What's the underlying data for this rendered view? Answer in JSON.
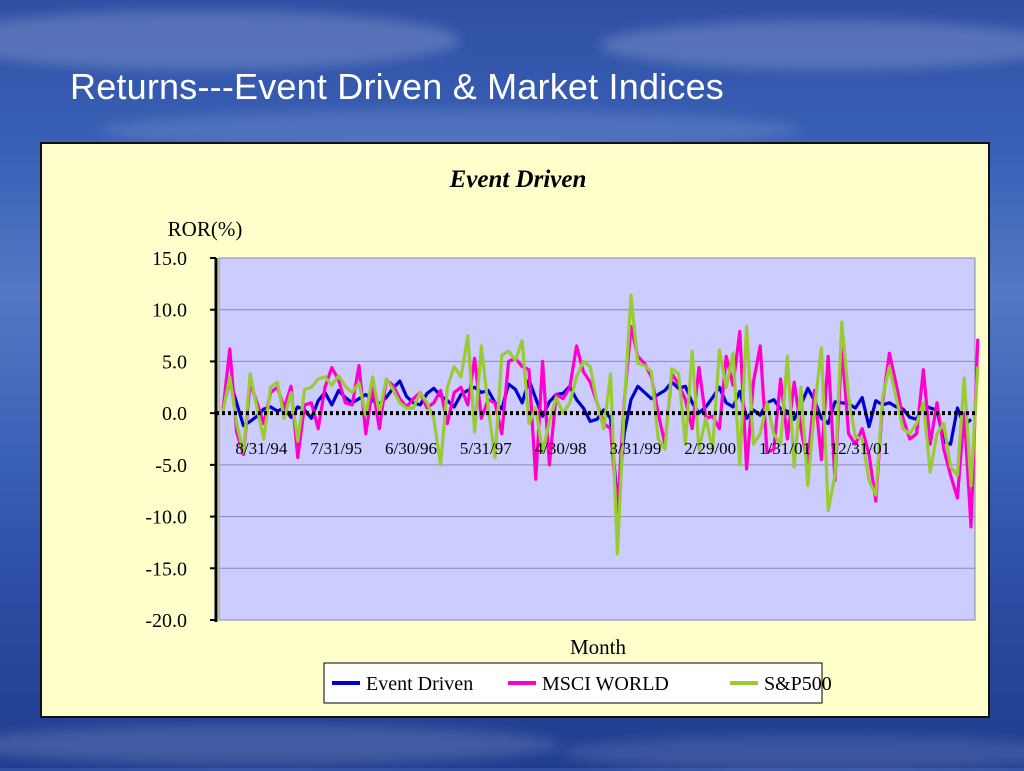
{
  "slide": {
    "title": "Returns---Event Driven & Market Indices"
  },
  "chart_data": {
    "type": "line",
    "title": "Event Driven",
    "ylabel": "ROR(%)",
    "xlabel": "Month",
    "ylim": [
      -20,
      15
    ],
    "y_ticks": [
      "15.0",
      "10.0",
      "5.0",
      "0.0",
      "-5.0",
      "-10.0",
      "-15.0",
      "-20.0"
    ],
    "y_tick_values": [
      15,
      10,
      5,
      0,
      -5,
      -10,
      -15,
      -20
    ],
    "x_tick_labels": [
      "8/31/94",
      "7/31/95",
      "6/30/96",
      "5/31/97",
      "4/30/98",
      "3/31/99",
      "2/29/00",
      "1/31/01",
      "12/31/01"
    ],
    "x_tick_index": [
      3,
      14,
      25,
      36,
      47,
      58,
      69,
      80,
      91
    ],
    "grid": true,
    "legend_position": "bottom",
    "colors": {
      "plot_bg": "#ccccff",
      "panel_bg": "#ffffcc",
      "zero_line": "#000000"
    },
    "series": [
      {
        "name": "Event Driven",
        "color": "#0000cc",
        "values": [
          0.5,
          3.2,
          1.0,
          -1.2,
          -0.8,
          -0.3,
          0.4,
          0.6,
          0.2,
          0.5,
          -0.4,
          0.6,
          0.3,
          -0.5,
          1.2,
          2.0,
          0.8,
          2.2,
          1.5,
          1.0,
          1.4,
          1.8,
          1.2,
          0.9,
          1.5,
          2.4,
          3.1,
          1.6,
          1.0,
          0.8,
          1.9,
          2.4,
          1.7,
          1.2,
          0.6,
          1.8,
          2.2,
          2.5,
          2.0,
          2.2,
          1.0,
          0.4,
          2.8,
          2.3,
          1.0,
          3.2,
          1.4,
          -0.3,
          1.1,
          1.8,
          1.9,
          2.6,
          1.3,
          0.5,
          -0.8,
          -0.6,
          0.3,
          -0.5,
          -9.0,
          -2.0,
          1.3,
          2.6,
          2.0,
          1.4,
          1.8,
          2.2,
          3.0,
          2.4,
          2.6,
          1.0,
          0.0,
          0.6,
          1.5,
          2.5,
          1.0,
          0.6,
          2.1,
          -0.5,
          0.3,
          -0.2,
          1.0,
          1.3,
          0.4,
          0.2,
          -0.6,
          0.8,
          2.4,
          1.2,
          -0.5,
          -1.0,
          1.1,
          1.0,
          0.9,
          0.5,
          1.5,
          -1.3,
          1.2,
          0.8,
          1.0,
          0.6,
          0.4,
          -0.4,
          -0.6,
          0.8,
          0.5,
          0.3,
          -2.8,
          -3.0,
          0.5,
          -1.2,
          -0.6
        ]
      },
      {
        "name": "MSCI WORLD",
        "color": "#ff00cc",
        "values": [
          0.3,
          6.2,
          -1.8,
          -4.0,
          3.0,
          1.0,
          -1.0,
          2.0,
          2.5,
          0.5,
          2.6,
          -4.3,
          0.8,
          1.0,
          -1.5,
          2.5,
          4.4,
          3.2,
          1.0,
          0.8,
          4.6,
          -2.0,
          2.5,
          -1.5,
          3.2,
          2.7,
          1.4,
          0.6,
          1.4,
          2.0,
          0.5,
          1.0,
          2.2,
          -1.0,
          2.0,
          2.5,
          0.8,
          5.3,
          -0.5,
          1.3,
          1.0,
          -2.0,
          5.0,
          5.3,
          4.5,
          4.2,
          -6.4,
          5.0,
          -5.0,
          1.8,
          1.4,
          2.5,
          6.5,
          4.0,
          3.0,
          1.0,
          -1.0,
          -1.5,
          -9.5,
          1.0,
          8.4,
          5.5,
          4.8,
          3.5,
          0.0,
          -3.0,
          3.8,
          2.8,
          1.3,
          -1.5,
          4.4,
          -0.5,
          -0.3,
          -1.5,
          5.5,
          2.7,
          7.9,
          -5.4,
          3.0,
          6.5,
          -3.8,
          -3.5,
          3.3,
          -2.5,
          3.0,
          -1.5,
          -5.0,
          2.2,
          -4.5,
          5.5,
          -6.5,
          6.5,
          -2.0,
          -3.0,
          -1.5,
          -4.0,
          -8.5,
          1.0,
          5.8,
          2.8,
          -0.5,
          -2.5,
          -2.0,
          4.2,
          -3.0,
          1.0,
          -3.5,
          -6.0,
          -8.2,
          0.0,
          -11.0,
          7.2
        ]
      },
      {
        "name": "S&P500",
        "color": "#99cc33",
        "values": [
          0.2,
          3.5,
          -1.0,
          -3.8,
          3.8,
          0.5,
          -2.5,
          2.5,
          3.0,
          -0.5,
          2.0,
          -2.7,
          2.3,
          2.5,
          3.3,
          3.5,
          2.7,
          3.6,
          2.6,
          2.0,
          2.9,
          -0.2,
          3.5,
          0.0,
          3.3,
          2.3,
          1.0,
          0.5,
          0.5,
          2.0,
          1.0,
          -0.5,
          -5.0,
          2.5,
          4.5,
          3.5,
          7.5,
          -1.8,
          6.5,
          0.5,
          -4.3,
          5.6,
          6.0,
          5.1,
          7.0,
          -1.0,
          0.5,
          -3.8,
          -0.8,
          1.5,
          0.0,
          1.0,
          3.5,
          5.0,
          4.5,
          1.0,
          -1.5,
          3.8,
          -13.6,
          0.5,
          11.4,
          4.8,
          4.6,
          4.0,
          -2.5,
          -3.5,
          4.3,
          3.8,
          -3.0,
          6.0,
          -3.5,
          -0.5,
          -3.5,
          6.1,
          2.5,
          5.8,
          -5.0,
          8.4,
          -3.0,
          -2.0,
          1.0,
          -2.0,
          -3.0,
          5.5,
          -5.2,
          2.5,
          -7.0,
          0.5,
          6.3,
          -9.4,
          -6.0,
          8.8,
          1.5,
          -2.3,
          -2.5,
          -6.5,
          -7.9,
          1.5,
          4.5,
          1.5,
          -1.5,
          -2.0,
          -1.0,
          1.0,
          -5.7,
          -2.0,
          -1.0,
          -5.2,
          -6.0,
          3.4,
          -7.0,
          4.5
        ]
      }
    ]
  }
}
